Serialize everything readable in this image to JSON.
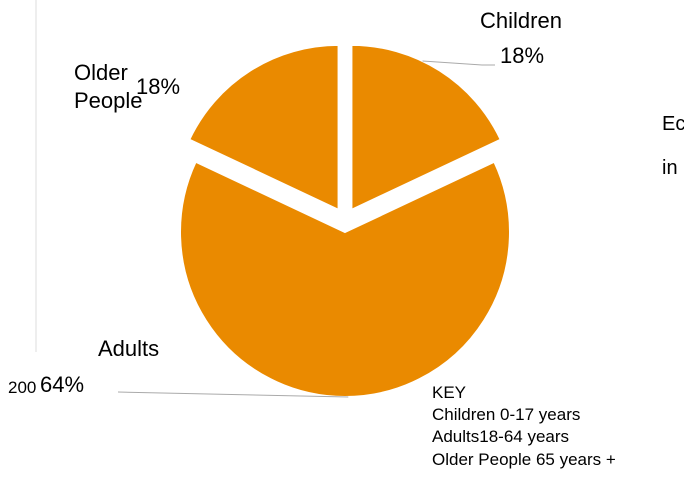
{
  "chart_data": {
    "type": "pie",
    "exploded": true,
    "slice_color": "#EA8A00",
    "background": "#FFFFFF",
    "slices": [
      {
        "category": "Children",
        "percent": 18,
        "percent_label": "18%"
      },
      {
        "category": "Adults",
        "percent": 64,
        "percent_label": "64%",
        "value_label": "200"
      },
      {
        "category": "Older People",
        "name_lines": [
          "Older",
          "People"
        ],
        "percent": 18,
        "percent_label": "18%"
      }
    ],
    "key": {
      "title": "KEY",
      "entries": [
        "Children 0-17 years",
        "Adults18-64 years",
        "Older People 65 years +"
      ]
    },
    "side_text": [
      "Ec",
      "in"
    ]
  }
}
